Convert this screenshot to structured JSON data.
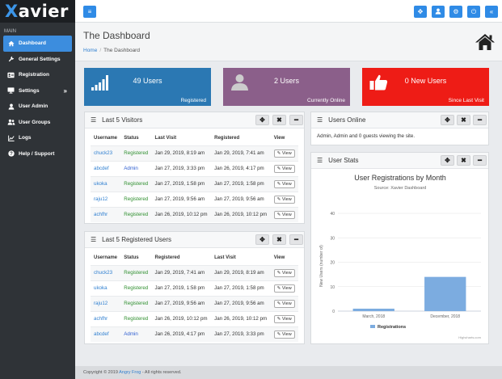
{
  "logo": {
    "first": "X",
    "rest": "avier"
  },
  "sidebar": {
    "heading": "MAIN",
    "items": [
      {
        "label": "Dashboard",
        "icon": "home-icon"
      },
      {
        "label": "General Settings",
        "icon": "wrench-icon"
      },
      {
        "label": "Registration",
        "icon": "id-card-icon"
      },
      {
        "label": "Settings",
        "icon": "monitor-icon",
        "arrow": "»"
      },
      {
        "label": "User Admin",
        "icon": "user-icon"
      },
      {
        "label": "User Groups",
        "icon": "users-icon"
      },
      {
        "label": "Logs",
        "icon": "chart-icon"
      },
      {
        "label": "Help / Support",
        "icon": "question-icon"
      }
    ]
  },
  "header": {
    "menu_glyph": "≡",
    "right_glyphs": [
      "✥",
      "👤",
      "⚙",
      "⏻",
      "«"
    ]
  },
  "page": {
    "title": "The Dashboard"
  },
  "breadcrumb": {
    "home": "Home",
    "sep": "/",
    "current": "The Dashboard"
  },
  "stats": [
    {
      "value": "49 Users",
      "label": "Registered",
      "color": "#2b78b3"
    },
    {
      "value": "2 Users",
      "label": "Currently Online",
      "color": "#8b5f8a"
    },
    {
      "value": "0 New Users",
      "label": "Since Last Visit",
      "color": "#ee1c16"
    }
  ],
  "visitors": {
    "title": "Last 5 Visitors",
    "headers": [
      "Username",
      "Status",
      "Last Visit",
      "Registered",
      "View"
    ],
    "rows": [
      {
        "user": "chuck23",
        "status": "Registered",
        "last": "Jan 29, 2019, 8:19 am",
        "reg": "Jan 29, 2019, 7:41 am"
      },
      {
        "user": "abcdef",
        "status": "Admin",
        "last": "Jan 27, 2019, 3:33 pm",
        "reg": "Jan 26, 2019, 4:17 pm"
      },
      {
        "user": "ukoka",
        "status": "Registered",
        "last": "Jan 27, 2019, 1:58 pm",
        "reg": "Jan 27, 2019, 1:58 pm"
      },
      {
        "user": "raju12",
        "status": "Registered",
        "last": "Jan 27, 2019, 9:56 am",
        "reg": "Jan 27, 2019, 9:56 am"
      },
      {
        "user": "achfhr",
        "status": "Registered",
        "last": "Jan 26, 2019, 10:12 pm",
        "reg": "Jan 26, 2019, 10:12 pm"
      }
    ]
  },
  "registered": {
    "title": "Last 5 Registered Users",
    "headers": [
      "Username",
      "Status",
      "Registered",
      "Last Visit",
      "View"
    ],
    "rows": [
      {
        "user": "chuck23",
        "status": "Registered",
        "reg": "Jan 29, 2019, 7:41 am",
        "last": "Jan 29, 2019, 8:19 am"
      },
      {
        "user": "ukoka",
        "status": "Registered",
        "reg": "Jan 27, 2019, 1:58 pm",
        "last": "Jan 27, 2019, 1:58 pm"
      },
      {
        "user": "raju12",
        "status": "Registered",
        "reg": "Jan 27, 2019, 9:56 am",
        "last": "Jan 27, 2019, 9:56 am"
      },
      {
        "user": "achfhr",
        "status": "Registered",
        "reg": "Jan 26, 2019, 10:12 pm",
        "last": "Jan 26, 2019, 10:12 pm"
      },
      {
        "user": "abcdef",
        "status": "Admin",
        "reg": "Jan 26, 2019, 4:17 pm",
        "last": "Jan 27, 2019, 3:33 pm"
      }
    ]
  },
  "view_label": "View",
  "online": {
    "title": "Users Online",
    "text": "Admin, Admin and 0 guests viewing the site."
  },
  "userstats": {
    "title": "User Stats"
  },
  "panel_buttons": {
    "move": "✥",
    "close": "✖",
    "minimize": "━"
  },
  "chart_data": {
    "type": "bar",
    "title": "User Registrations by Month",
    "subtitle": "Source: Xavier Dashboard",
    "categories": [
      "March, 2018",
      "December, 2018"
    ],
    "series": [
      {
        "name": "Registrations",
        "values": [
          1,
          14
        ],
        "color": "#7cace0"
      }
    ],
    "ylabel": "New Users (number of)",
    "ylim": [
      0,
      40
    ],
    "yticks": [
      0,
      10,
      20,
      30,
      40
    ],
    "grid": true,
    "legend": "bottom",
    "credits": "Highcharts.com"
  },
  "footer": {
    "prefix": "Copyright © 2019 ",
    "brand": "Angry Frog",
    "suffix": " - All rights reserved."
  }
}
